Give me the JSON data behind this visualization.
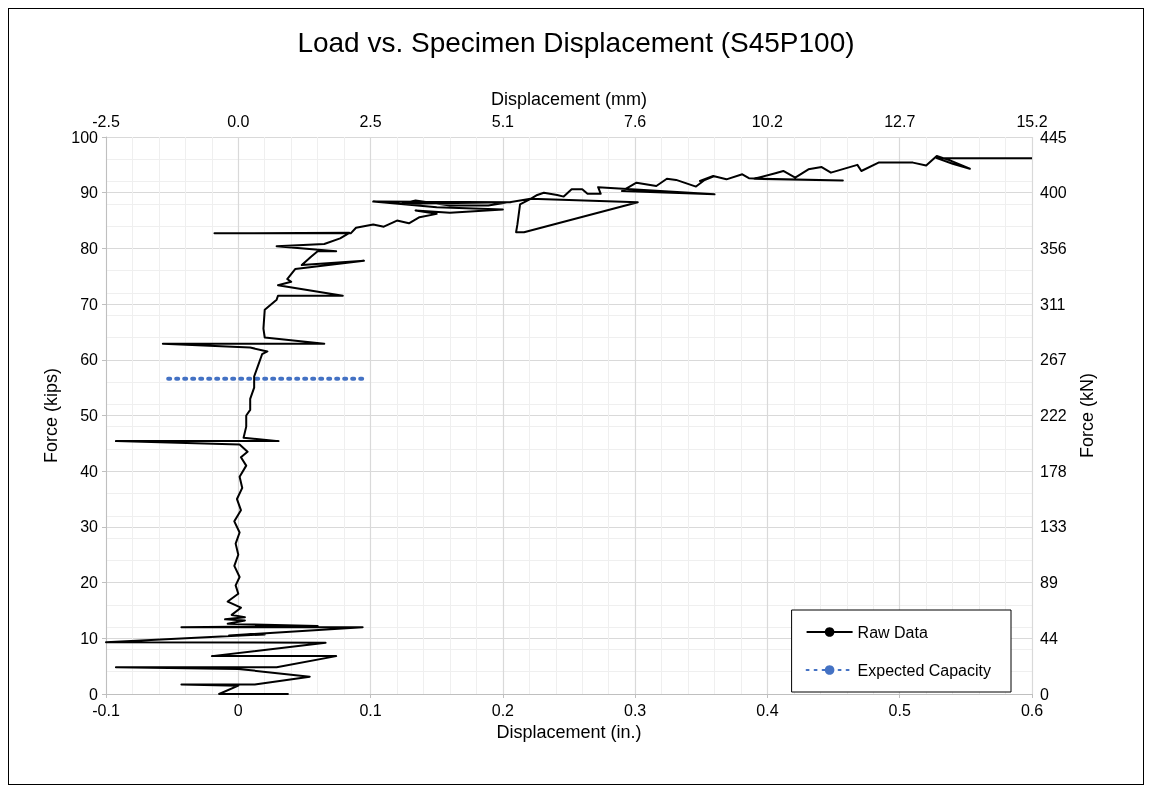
{
  "chart_data": {
    "type": "line",
    "title": "Load vs. Specimen Displacement (S45P100)",
    "xlabel": "Displacement (in.)",
    "x2label": "Displacement (mm)",
    "ylabel": "Force (kips)",
    "y2label": "Force (kN)",
    "xlim": [
      -0.1,
      0.6
    ],
    "xticks": [
      -0.1,
      0,
      0.1,
      0.2,
      0.3,
      0.4,
      0.5,
      0.6
    ],
    "ylim": [
      0,
      100
    ],
    "yticks": [
      0,
      10,
      20,
      30,
      40,
      50,
      60,
      70,
      80,
      90,
      100
    ],
    "x2lim": [
      -2.54,
      15.24
    ],
    "x2ticks": [
      {
        "value": -2.54,
        "label": "-2.5"
      },
      {
        "value": 0,
        "label": "0.0"
      },
      {
        "value": 2.54,
        "label": "2.5"
      },
      {
        "value": 5.08,
        "label": "5.1"
      },
      {
        "value": 7.62,
        "label": "7.6"
      },
      {
        "value": 10.16,
        "label": "10.2"
      },
      {
        "value": 12.7,
        "label": "12.7"
      },
      {
        "value": 15.24,
        "label": "15.2"
      }
    ],
    "y2lim": [
      0,
      444.8
    ],
    "y2ticks": [
      0,
      {
        "value": 44.48,
        "label": "44"
      },
      {
        "value": 88.96,
        "label": "89"
      },
      {
        "value": 133.44,
        "label": "133"
      },
      {
        "value": 177.92,
        "label": "178"
      },
      {
        "value": 222.4,
        "label": "222"
      },
      {
        "value": 266.88,
        "label": "267"
      },
      {
        "value": 311.36,
        "label": "311"
      },
      {
        "value": 355.84,
        "label": "356"
      },
      {
        "value": 400.32,
        "label": "400"
      },
      {
        "value": 444.8,
        "label": "445"
      }
    ],
    "grid": true,
    "legend": "bottom right",
    "marker": "none",
    "series": [
      {
        "name": "Raw Data",
        "color": "#000000",
        "line_style": "solid",
        "x": [
          0,
          0.0375,
          -0.0145,
          0,
          -0.043,
          0.0125,
          0.054,
          0,
          -0.0925,
          0.029,
          0.074,
          -0.02,
          0.066,
          -0.1,
          0.02,
          -0.007,
          0.094,
          -0.043,
          0.06,
          -0.008,
          0.005,
          -0.01,
          0.005,
          -0.005,
          0.002,
          -0.008,
          0,
          -0.002,
          0.001,
          -0.003,
          0,
          -0.002,
          0.001,
          -0.003,
          0.002,
          -0.001,
          0.003,
          0.001,
          0.006,
          0.002,
          0.007,
          0.001,
          -0.0925,
          0.0305,
          0.004,
          0.006,
          0.006,
          0.009,
          0.009,
          0.012,
          0.012,
          0.015,
          0.018,
          0.022,
          0.009,
          -0.057,
          0.065,
          0.02,
          0.019,
          0.02,
          0.029,
          0.03,
          0.079,
          0.03,
          0.04,
          0.037,
          0.043,
          0.095,
          0.048,
          0.055,
          0.06,
          0.074,
          0.029,
          0.065,
          0.077,
          0.084,
          -0.018,
          0.085,
          0.089,
          0.102,
          0.11,
          0.12,
          0.129,
          0.137,
          0.15,
          0.134,
          0.16,
          0.2,
          0.15,
          0.102,
          0.206,
          0.124,
          0.134,
          0.16,
          0.189,
          0.221,
          0.213,
          0.211,
          0.21,
          0.216,
          0.302,
          0.221,
          0.226,
          0.231,
          0.241,
          0.246,
          0.252,
          0.26,
          0.264,
          0.274,
          0.272,
          0.36,
          0.29,
          0.301,
          0.316,
          0.324,
          0.331,
          0.346,
          0.352,
          0.359,
          0.349,
          0.359,
          0.369,
          0.381,
          0.386,
          0.395,
          0.457,
          0.39,
          0.406,
          0.412,
          0.421,
          0.431,
          0.441,
          0.448,
          0.468,
          0.471,
          0.484,
          0.51,
          0.52,
          0.528,
          0.538,
          0.553,
          0.54,
          0.528,
          0.6
        ],
        "values": [
          0,
          0,
          0,
          1.5,
          1.7,
          1.7,
          3.1,
          4.5,
          4.8,
          4.8,
          6.8,
          6.8,
          9.2,
          9.3,
          10.7,
          10.5,
          12,
          12,
          12.2,
          12.6,
          13.2,
          13.4,
          13.8,
          14.2,
          15.5,
          16.6,
          18,
          19.5,
          21,
          23,
          25,
          27,
          29,
          31,
          33,
          35,
          37,
          39,
          41,
          42.5,
          43.5,
          44.8,
          45.4,
          45.4,
          46,
          48,
          50,
          51,
          53,
          55,
          57,
          59,
          61,
          61.5,
          62.2,
          62.9,
          62.9,
          64,
          65.6,
          69,
          70.8,
          71.5,
          71.5,
          73.4,
          74,
          74.5,
          76.3,
          77.8,
          77,
          78.5,
          79.5,
          79.5,
          80.4,
          80.8,
          81.8,
          82.8,
          82.7,
          82.7,
          83.7,
          84.3,
          83.9,
          85,
          84.5,
          85.6,
          86.2,
          86.8,
          86.4,
          87,
          87.4,
          88.4,
          88.3,
          88,
          88.6,
          87.7,
          87.7,
          88.9,
          87.9,
          84.3,
          82.9,
          82.9,
          88.3,
          88.9,
          89.6,
          90,
          89.6,
          89.3,
          90.6,
          90.6,
          89.8,
          89.8,
          91,
          89.7,
          90.3,
          91.8,
          91.2,
          92.5,
          92.3,
          91.1,
          92.2,
          92.9,
          92.1,
          93,
          92.4,
          93.3,
          92.6,
          92.5,
          92.2,
          92.5,
          93.5,
          93.9,
          92.7,
          94.2,
          94.6,
          93.6,
          95,
          93.9,
          95.4,
          95.4,
          94.9,
          96.6,
          95.8,
          94.3,
          95.2,
          96.2,
          96.2
        ]
      },
      {
        "name": "Expected Capacity",
        "color": "#4472c4",
        "line_style": "dotted",
        "x": [
          -0.053,
          0.095
        ],
        "values": [
          56.6,
          56.6
        ]
      }
    ]
  }
}
